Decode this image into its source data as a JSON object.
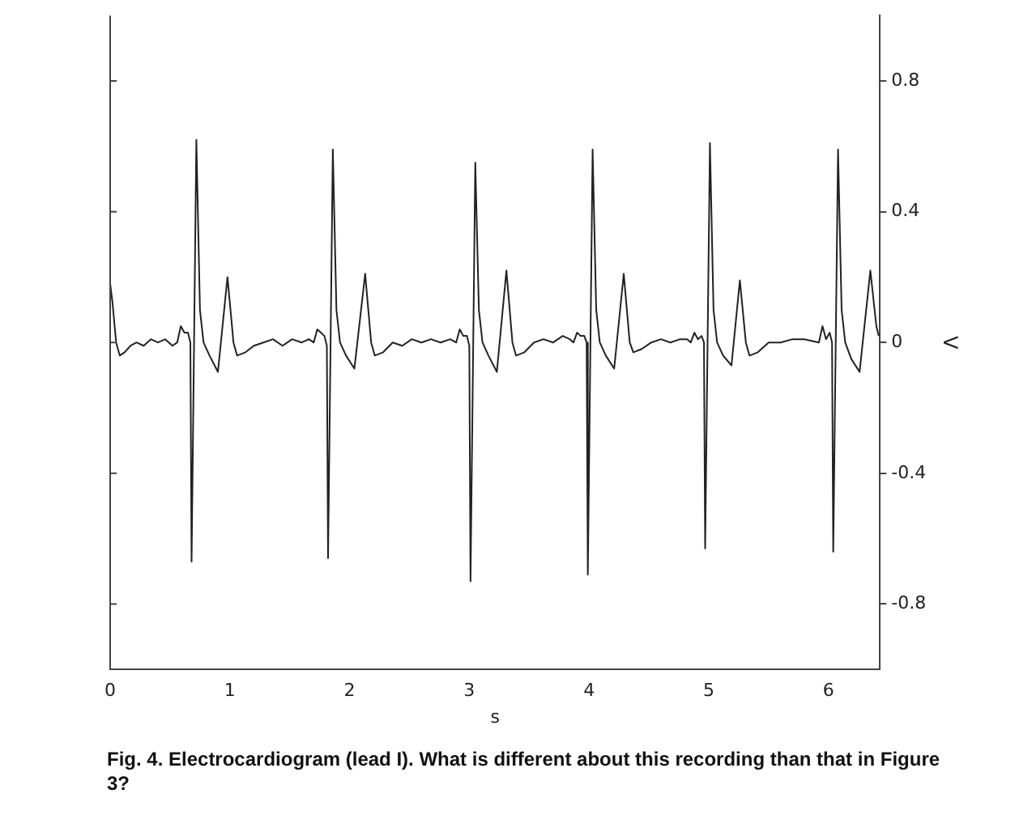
{
  "chart_data": {
    "type": "line",
    "xlabel": "s",
    "ylabel": "V",
    "x": [
      0,
      0.02,
      0.05,
      0.08,
      0.12,
      0.17,
      0.22,
      0.28,
      0.34,
      0.4,
      0.46,
      0.52,
      0.56,
      0.59,
      0.62,
      0.65,
      0.67,
      0.68,
      0.72,
      0.75,
      0.78,
      0.83,
      0.9,
      0.98,
      1.03,
      1.06,
      1.13,
      1.2,
      1.28,
      1.36,
      1.44,
      1.52,
      1.6,
      1.66,
      1.7,
      1.73,
      1.76,
      1.79,
      1.81,
      1.82,
      1.86,
      1.89,
      1.92,
      1.97,
      2.04,
      2.13,
      2.18,
      2.21,
      2.28,
      2.36,
      2.44,
      2.52,
      2.6,
      2.68,
      2.76,
      2.84,
      2.89,
      2.92,
      2.95,
      2.98,
      3.0,
      3.01,
      3.05,
      3.08,
      3.11,
      3.16,
      3.23,
      3.31,
      3.36,
      3.39,
      3.46,
      3.54,
      3.62,
      3.7,
      3.78,
      3.84,
      3.87,
      3.9,
      3.93,
      3.96,
      3.98,
      3.99,
      4.03,
      4.06,
      4.09,
      4.14,
      4.21,
      4.29,
      4.34,
      4.37,
      4.44,
      4.52,
      4.6,
      4.68,
      4.76,
      4.82,
      4.85,
      4.88,
      4.91,
      4.94,
      4.96,
      4.97,
      5.01,
      5.04,
      5.07,
      5.12,
      5.19,
      5.26,
      5.31,
      5.34,
      5.41,
      5.5,
      5.6,
      5.7,
      5.8,
      5.92,
      5.95,
      5.98,
      6.01,
      6.03,
      6.04,
      6.08,
      6.11,
      6.14,
      6.19,
      6.26,
      6.35,
      6.4,
      6.42
    ],
    "series": [
      {
        "color": "#222222",
        "values": [
          0.18,
          0.12,
          0,
          -0.04,
          -0.03,
          -0.01,
          0,
          -0.01,
          0.01,
          0,
          0.01,
          -0.01,
          0,
          0.05,
          0.03,
          0.03,
          0,
          -0.67,
          0.62,
          0.1,
          0,
          -0.04,
          -0.09,
          0.2,
          0,
          -0.04,
          -0.03,
          -0.01,
          0,
          0.01,
          -0.01,
          0.01,
          0,
          0.01,
          0,
          0.04,
          0.03,
          0.02,
          -0.01,
          -0.66,
          0.59,
          0.1,
          0,
          -0.04,
          -0.08,
          0.21,
          0,
          -0.04,
          -0.03,
          0,
          -0.01,
          0.01,
          0,
          0.01,
          0,
          0.01,
          0,
          0.04,
          0.02,
          0.02,
          -0.01,
          -0.73,
          0.55,
          0.1,
          0,
          -0.04,
          -0.09,
          0.22,
          0,
          -0.04,
          -0.03,
          0,
          0.01,
          0,
          0.02,
          0.01,
          0,
          0.03,
          0.02,
          0.02,
          0,
          -0.71,
          0.59,
          0.1,
          0,
          -0.04,
          -0.08,
          0.21,
          0,
          -0.03,
          -0.02,
          0,
          0.01,
          0,
          0.01,
          0.01,
          0,
          0.03,
          0.01,
          0.02,
          0,
          -0.63,
          0.61,
          0.1,
          0,
          -0.04,
          -0.07,
          0.19,
          0,
          -0.04,
          -0.03,
          0,
          0,
          0.01,
          0.01,
          0,
          0.05,
          0.01,
          0.03,
          0,
          -0.64,
          0.59,
          0.1,
          0,
          -0.05,
          -0.09,
          0.22,
          0.05,
          0.02
        ]
      }
    ],
    "xlim": [
      0,
      6.43
    ],
    "xticks": [
      0,
      1,
      2,
      3,
      4,
      5,
      6
    ],
    "ylim": [
      -1,
      1
    ],
    "yticks": [
      -0.8,
      -0.4,
      0,
      0.4,
      0.8
    ],
    "grid": false,
    "legend": false,
    "marker": "none",
    "line_style": "solid",
    "annotations": [
      "Fig. 4.  Electrocardiogram (lead I).  What is different about this recording than that in Figure 3?"
    ]
  }
}
